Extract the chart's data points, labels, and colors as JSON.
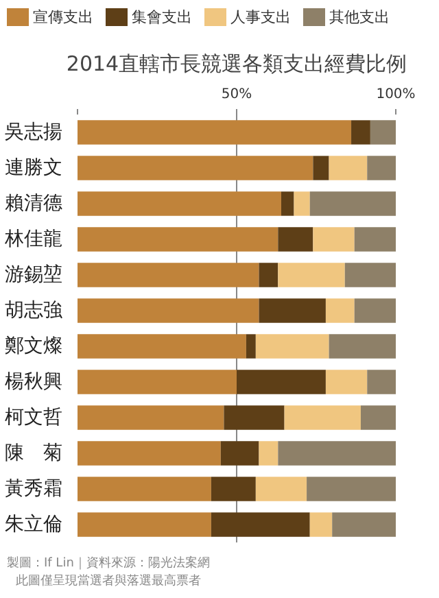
{
  "chart_data": {
    "type": "bar",
    "orientation": "horizontal",
    "stacked": true,
    "title": "2014直轄市長競選各類支出經費比例",
    "categories": [
      "吳志揚",
      "連勝文",
      "賴清德",
      "林佳龍",
      "游錫堃",
      "胡志強",
      "鄭文燦",
      "楊秋興",
      "柯文哲",
      "陳　菊",
      "黃秀霜",
      "朱立倫"
    ],
    "series": [
      {
        "name": "宣傳支出",
        "color": "#c0833a",
        "values": [
          86,
          74,
          64,
          63,
          57,
          57,
          53,
          50,
          46,
          45,
          42,
          42
        ]
      },
      {
        "name": "集會支出",
        "color": "#5e3f17",
        "values": [
          6,
          5,
          4,
          11,
          6,
          21,
          3,
          28,
          19,
          12,
          14,
          31
        ]
      },
      {
        "name": "人事支出",
        "color": "#f0c680",
        "values": [
          0,
          12,
          5,
          13,
          21,
          9,
          23,
          13,
          24,
          6,
          16,
          7
        ]
      },
      {
        "name": "其他支出",
        "color": "#8e8068",
        "values": [
          8,
          9,
          27,
          13,
          16,
          13,
          21,
          9,
          11,
          37,
          28,
          20
        ]
      }
    ],
    "xlim": [
      0,
      100
    ],
    "xticks": [
      {
        "value": 0,
        "label": null
      },
      {
        "value": 50,
        "label": "50%"
      },
      {
        "value": 100,
        "label": "100%"
      }
    ],
    "grid": "x",
    "legend": "top",
    "annotations": [
      "製圖：If Lin｜資料來源：陽光法案網",
      "此圖僅呈現當選者與落選最高票者"
    ]
  }
}
